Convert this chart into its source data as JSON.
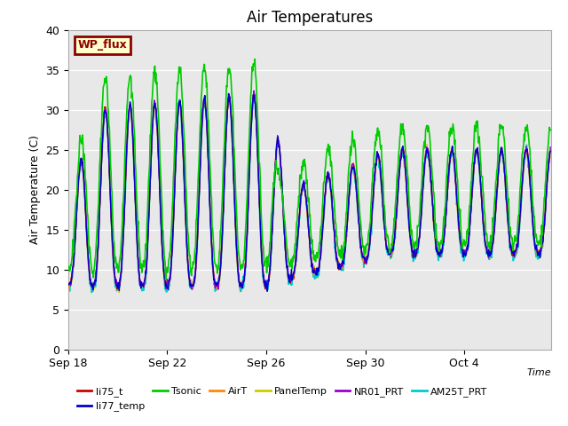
{
  "title": "Air Temperatures",
  "xlabel": "Time",
  "ylabel": "Air Temperature (C)",
  "ylim": [
    0,
    40
  ],
  "yticks": [
    0,
    5,
    10,
    15,
    20,
    25,
    30,
    35,
    40
  ],
  "background_color": "#e8e8e8",
  "figure_bg": "#ffffff",
  "wp_flux_label": "WP_flux",
  "wp_flux_bg": "#ffffcc",
  "wp_flux_border": "#8b0000",
  "wp_flux_text": "#8b0000",
  "series": [
    {
      "name": "li75_t",
      "color": "#cc0000",
      "lw": 1.0,
      "zorder": 3
    },
    {
      "name": "li77_temp",
      "color": "#0000cc",
      "lw": 1.0,
      "zorder": 4
    },
    {
      "name": "Tsonic",
      "color": "#00cc00",
      "lw": 1.2,
      "zorder": 5
    },
    {
      "name": "AirT",
      "color": "#ff8800",
      "lw": 1.0,
      "zorder": 3
    },
    {
      "name": "PanelTemp",
      "color": "#cccc00",
      "lw": 1.0,
      "zorder": 2
    },
    {
      "name": "NR01_PRT",
      "color": "#9900cc",
      "lw": 1.0,
      "zorder": 3
    },
    {
      "name": "AM25T_PRT",
      "color": "#00cccc",
      "lw": 1.2,
      "zorder": 2
    }
  ],
  "xtick_labels": [
    "Sep 18",
    "Sep 22",
    "Sep 26",
    "Sep 30",
    "Oct 4"
  ],
  "xtick_positions": [
    0,
    4,
    8,
    12,
    16
  ]
}
